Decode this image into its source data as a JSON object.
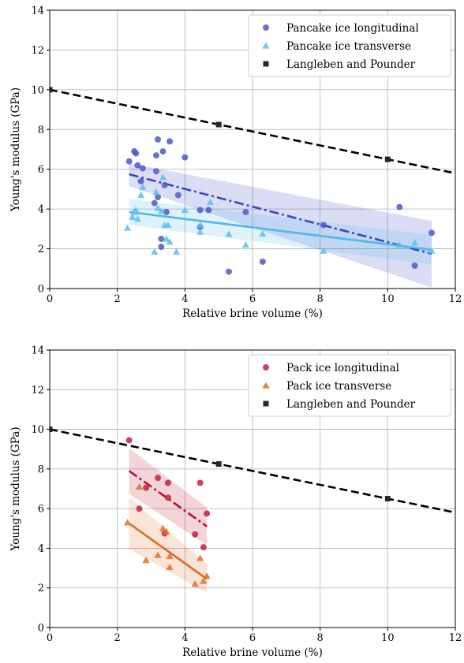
{
  "chart_data": [
    {
      "type": "scatter",
      "xlabel": "Relative brine volume (%)",
      "ylabel": "Young's modulus (GPa)",
      "xlim": [
        0,
        12
      ],
      "ylim": [
        0,
        14
      ],
      "xticks": [
        0,
        2,
        4,
        6,
        8,
        10,
        12
      ],
      "yticks": [
        0,
        2,
        4,
        6,
        8,
        10,
        12,
        14
      ],
      "grid": true,
      "legend_position": "top-right",
      "series": [
        {
          "name": "Pancake ice longitudinal",
          "marker": "circle",
          "color": "#4f5bc4",
          "points": [
            [
              2.35,
              6.4
            ],
            [
              2.5,
              6.9
            ],
            [
              2.55,
              6.8
            ],
            [
              2.6,
              6.2
            ],
            [
              2.7,
              5.4
            ],
            [
              2.75,
              6.05
            ],
            [
              3.1,
              4.3
            ],
            [
              3.15,
              6.7
            ],
            [
              3.15,
              5.9
            ],
            [
              3.2,
              4.6
            ],
            [
              3.2,
              7.5
            ],
            [
              3.3,
              2.5
            ],
            [
              3.3,
              2.1
            ],
            [
              3.35,
              6.9
            ],
            [
              3.4,
              5.2
            ],
            [
              3.45,
              3.85
            ],
            [
              3.55,
              7.4
            ],
            [
              3.8,
              4.7
            ],
            [
              4.0,
              6.6
            ],
            [
              4.45,
              3.95
            ],
            [
              4.45,
              3.1
            ],
            [
              4.7,
              3.95
            ],
            [
              5.3,
              0.85
            ],
            [
              5.8,
              3.85
            ],
            [
              6.3,
              1.35
            ],
            [
              8.1,
              3.2
            ],
            [
              10.35,
              4.1
            ],
            [
              10.8,
              1.15
            ],
            [
              11.3,
              2.8
            ]
          ],
          "fit": {
            "line_style": "dash-dot",
            "color": "#3a45c0",
            "x": [
              2.35,
              11.3
            ],
            "y": [
              5.75,
              1.75
            ],
            "ci_upper": [
              6.3,
              3.4
            ],
            "ci_lower": [
              5.15,
              0.05
            ]
          }
        },
        {
          "name": "Pancake ice transverse",
          "marker": "triangle",
          "color": "#5bc0ea",
          "points": [
            [
              2.3,
              3.05
            ],
            [
              2.45,
              3.6
            ],
            [
              2.5,
              3.85
            ],
            [
              2.55,
              3.95
            ],
            [
              2.6,
              3.5
            ],
            [
              2.7,
              4.7
            ],
            [
              2.75,
              5.1
            ],
            [
              3.1,
              1.85
            ],
            [
              3.15,
              4.85
            ],
            [
              3.2,
              4.05
            ],
            [
              3.3,
              3.9
            ],
            [
              3.35,
              5.6
            ],
            [
              3.4,
              3.2
            ],
            [
              3.45,
              2.5
            ],
            [
              3.5,
              3.2
            ],
            [
              3.55,
              2.35
            ],
            [
              3.75,
              1.85
            ],
            [
              4.0,
              3.95
            ],
            [
              4.45,
              3.2
            ],
            [
              4.45,
              2.85
            ],
            [
              4.75,
              4.35
            ],
            [
              5.3,
              2.75
            ],
            [
              5.8,
              2.2
            ],
            [
              6.3,
              2.75
            ],
            [
              8.1,
              1.9
            ],
            [
              10.35,
              2.2
            ],
            [
              10.8,
              2.3
            ],
            [
              11.3,
              1.9
            ]
          ],
          "fit": {
            "line_style": "solid",
            "color": "#4fb8ea",
            "x": [
              2.35,
              11.3
            ],
            "y": [
              3.85,
              1.95
            ],
            "ci_upper": [
              4.5,
              2.7
            ],
            "ci_lower": [
              3.2,
              1.2
            ]
          }
        },
        {
          "name": "Langleben and Pounder",
          "marker": "square",
          "color": "#262626",
          "points": [
            [
              0,
              10
            ],
            [
              5,
              8.25
            ],
            [
              10,
              6.5
            ]
          ],
          "fit": {
            "line_style": "dashed",
            "color": "#000000",
            "x": [
              0,
              12
            ],
            "y": [
              10,
              5.8
            ]
          }
        }
      ]
    },
    {
      "type": "scatter",
      "xlabel": "Relative brine volume (%)",
      "ylabel": "Young's modulus (GPa)",
      "xlim": [
        0,
        12
      ],
      "ylim": [
        0,
        14
      ],
      "xticks": [
        0,
        2,
        4,
        6,
        8,
        10,
        12
      ],
      "yticks": [
        0,
        2,
        4,
        6,
        8,
        10,
        12,
        14
      ],
      "grid": true,
      "legend_position": "top-right",
      "series": [
        {
          "name": "Pack ice longitudinal",
          "marker": "circle",
          "color": "#c4213d",
          "points": [
            [
              2.35,
              9.45
            ],
            [
              2.65,
              6.0
            ],
            [
              2.85,
              7.05
            ],
            [
              3.2,
              7.55
            ],
            [
              3.4,
              4.75
            ],
            [
              3.5,
              7.3
            ],
            [
              3.5,
              6.55
            ],
            [
              4.3,
              4.7
            ],
            [
              4.45,
              7.3
            ],
            [
              4.55,
              4.05
            ],
            [
              4.65,
              5.75
            ]
          ],
          "fit": {
            "line_style": "dash-dot",
            "color": "#b8102e",
            "x": [
              2.35,
              4.65
            ],
            "y": [
              7.9,
              5.1
            ],
            "ci_upper": [
              9.05,
              6.05
            ],
            "ci_lower": [
              6.75,
              4.15
            ]
          }
        },
        {
          "name": "Pack ice transverse",
          "marker": "triangle",
          "color": "#e0702b",
          "points": [
            [
              2.3,
              5.3
            ],
            [
              2.65,
              7.1
            ],
            [
              2.85,
              3.4
            ],
            [
              3.2,
              3.65
            ],
            [
              3.35,
              5.0
            ],
            [
              3.45,
              4.85
            ],
            [
              3.55,
              3.05
            ],
            [
              3.55,
              3.6
            ],
            [
              4.3,
              2.2
            ],
            [
              4.45,
              3.5
            ],
            [
              4.55,
              2.35
            ],
            [
              4.65,
              2.6
            ]
          ],
          "fit": {
            "line_style": "solid",
            "color": "#e06a20",
            "x": [
              2.35,
              4.65
            ],
            "y": [
              5.25,
              2.45
            ],
            "ci_upper": [
              6.55,
              3.2
            ],
            "ci_lower": [
              3.95,
              1.75
            ]
          }
        },
        {
          "name": "Langleben and Pounder",
          "marker": "square",
          "color": "#262626",
          "points": [
            [
              0,
              10
            ],
            [
              5,
              8.25
            ],
            [
              10,
              6.5
            ]
          ],
          "fit": {
            "line_style": "dashed",
            "color": "#000000",
            "x": [
              0,
              12
            ],
            "y": [
              10,
              5.8
            ]
          }
        }
      ]
    }
  ]
}
